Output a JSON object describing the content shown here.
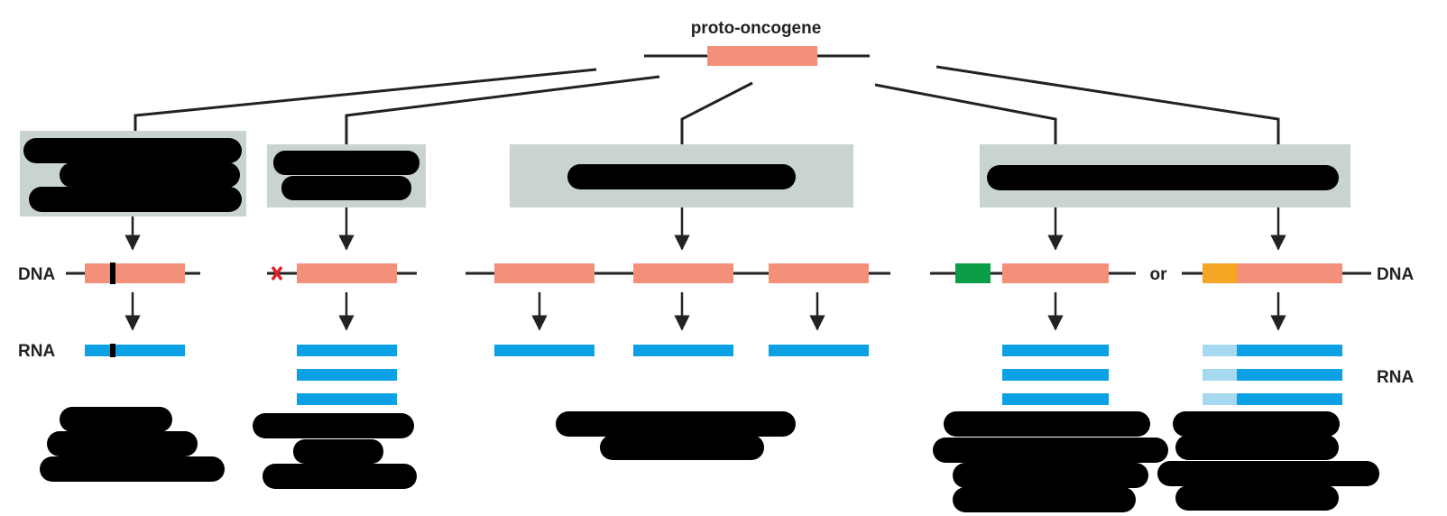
{
  "title": "proto-oncogene",
  "labels": {
    "dna_left": "DNA",
    "rna_left": "RNA",
    "dna_right": "DNA",
    "rna_right": "RNA",
    "or": "or"
  },
  "colors": {
    "gene": "#f4907a",
    "rna": "#0ca0e4",
    "rna_light": "#a6d8f0",
    "panel": "#c9d3cf",
    "redaction": "#000000",
    "mutation_mark": "#000000",
    "deletion_x": "#e0202a",
    "enhancer_green": "#0a9c46",
    "promoter_orange": "#f5a623",
    "line": "#222222"
  },
  "icons": {
    "deletion": "x-mark-icon",
    "arrow": "down-arrow-icon"
  },
  "redacted_note": "panel headers and outcome captions are redacted (black bars)"
}
